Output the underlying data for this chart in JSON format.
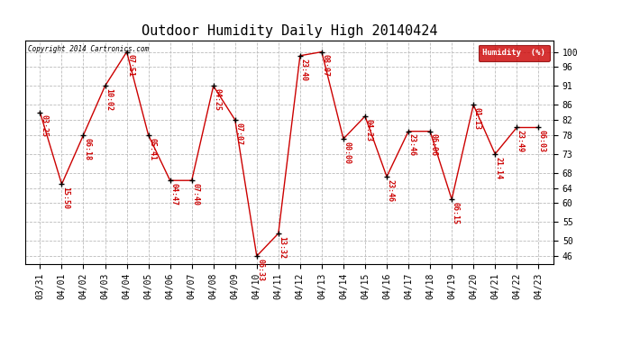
{
  "title": "Outdoor Humidity Daily High 20140424",
  "copyright": "Copyright 2014 Cartronics.com",
  "legend_label": "Humidity  (%)",
  "ylim": [
    44,
    103
  ],
  "yticks": [
    46,
    50,
    55,
    60,
    64,
    68,
    73,
    78,
    82,
    86,
    91,
    96,
    100
  ],
  "background_color": "#ffffff",
  "grid_color": "#bbbbbb",
  "line_color": "#cc0000",
  "point_color": "#000000",
  "label_color": "#cc0000",
  "dates": [
    "03/31",
    "04/01",
    "04/02",
    "04/03",
    "04/04",
    "04/05",
    "04/06",
    "04/07",
    "04/08",
    "04/09",
    "04/10",
    "04/11",
    "04/12",
    "04/13",
    "04/14",
    "04/15",
    "04/16",
    "04/17",
    "04/18",
    "04/19",
    "04/20",
    "04/21",
    "04/22",
    "04/23"
  ],
  "values": [
    84,
    65,
    78,
    91,
    100,
    78,
    66,
    66,
    91,
    82,
    46,
    52,
    99,
    100,
    77,
    83,
    67,
    79,
    79,
    61,
    86,
    73,
    80,
    80
  ],
  "time_labels": [
    "03:25",
    "15:50",
    "06:18",
    "10:02",
    "07:51",
    "05:41",
    "04:47",
    "07:40",
    "04:25",
    "07:07",
    "06:33",
    "13:32",
    "23:40",
    "08:07",
    "00:00",
    "04:23",
    "23:46",
    "23:46",
    "06:06",
    "06:15",
    "01:13",
    "21:14",
    "23:49",
    "06:03"
  ],
  "title_fontsize": 11,
  "tick_fontsize": 7,
  "label_fontsize": 6,
  "figsize": [
    6.9,
    3.75
  ],
  "dpi": 100
}
